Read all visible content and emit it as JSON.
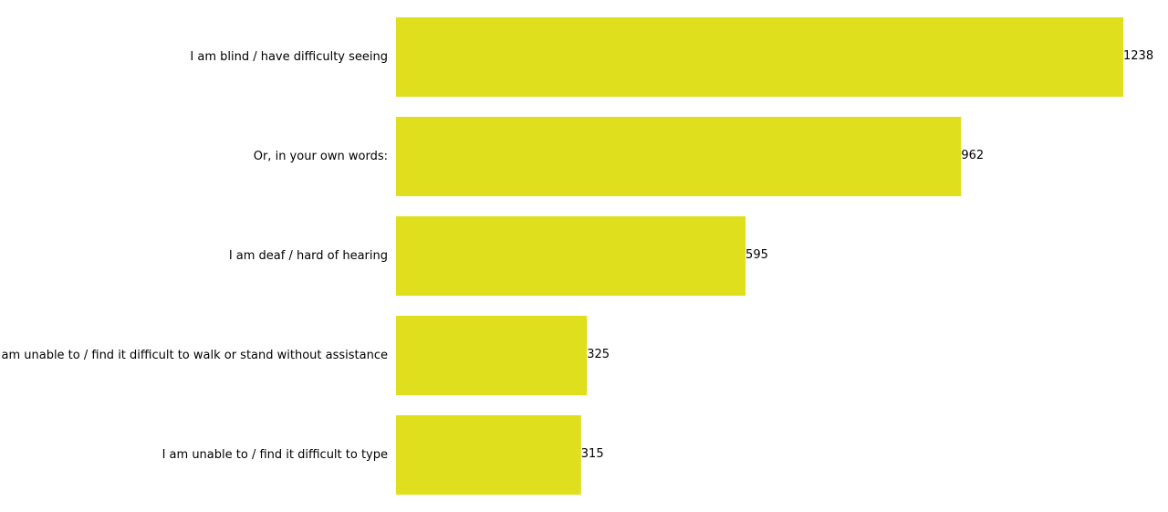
{
  "chart_data": {
    "type": "bar",
    "orientation": "horizontal",
    "title": "",
    "xlabel": "",
    "ylabel": "",
    "grid": false,
    "xlim": [
      0,
      1238
    ],
    "bar_color": "#dfdf1e",
    "categories": [
      "I am blind / have difficulty seeing",
      "Or, in your own words:",
      "I am deaf / hard of hearing",
      "I am unable to / find it difficult to walk or stand without assistance",
      "I am unable to / find it difficult to type"
    ],
    "values": [
      1238,
      962,
      595,
      325,
      315
    ],
    "value_labels": [
      "1238",
      "962",
      "595",
      "325",
      "315"
    ]
  }
}
